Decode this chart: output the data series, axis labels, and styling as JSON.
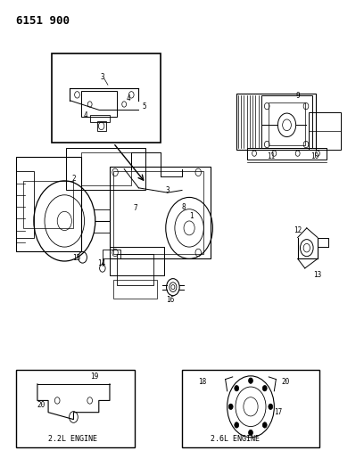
{
  "title": "6151 900",
  "bg_color": "#ffffff",
  "line_color": "#000000",
  "fig_width": 4.08,
  "fig_height": 5.33,
  "dpi": 100,
  "engine22": "2.2L ENGINE",
  "engine26": "2.6L ENGINE"
}
